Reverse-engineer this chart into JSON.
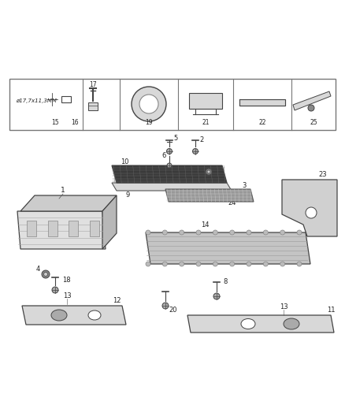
{
  "bg_color": "#ffffff",
  "fig_width": 4.38,
  "fig_height": 5.33,
  "dpi": 100,
  "line_color": "#444444",
  "light_gray": "#d8d8d8",
  "mid_gray": "#aaaaaa",
  "dark_gray": "#666666"
}
